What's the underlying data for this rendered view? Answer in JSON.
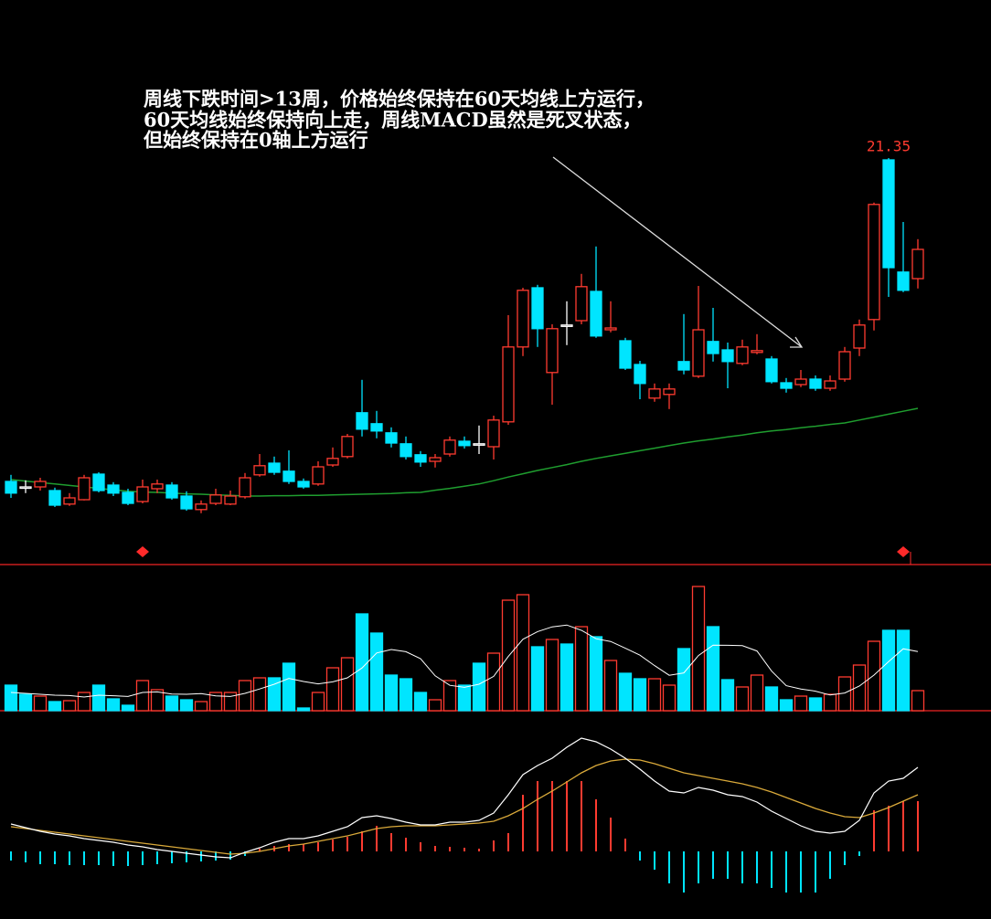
{
  "chart_data": [
    {
      "type": "candlestick",
      "annotation": [
        "周线下跌时间>13周，价格始终保持在60天均线上方运行，",
        "60天均线始终保持向上走，周线MACD虽然是死叉状态，",
        "但始终保持在0轴上方运行"
      ],
      "ylim": [
        11,
        23
      ],
      "up_color": "#ff3b30",
      "down_color": "#00e5ff",
      "doji_color": "#ffffff",
      "open": [
        12.5,
        12.35,
        12.35,
        12.25,
        11.88,
        12.0,
        12.7,
        12.4,
        12.2,
        11.95,
        12.3,
        12.4,
        12.1,
        11.73,
        11.9,
        11.88,
        12.08,
        12.68,
        13.0,
        12.78,
        12.5,
        12.43,
        12.95,
        13.18,
        14.38,
        14.08,
        13.83,
        13.53,
        13.23,
        13.05,
        13.25,
        13.6,
        13.53,
        13.45,
        14.13,
        16.18,
        17.8,
        15.48,
        16.78,
        16.9,
        17.7,
        16.65,
        16.35,
        15.7,
        14.78,
        14.88,
        15.78,
        15.38,
        16.33,
        16.1,
        15.73,
        16.03,
        15.85,
        15.2,
        15.15,
        15.3,
        15.05,
        15.3,
        16.15,
        16.93,
        21.3,
        18.23,
        18.05
      ],
      "close": [
        12.18,
        12.35,
        12.5,
        11.85,
        12.05,
        12.6,
        12.25,
        12.18,
        11.9,
        12.35,
        12.43,
        12.05,
        11.75,
        11.88,
        12.13,
        12.1,
        12.6,
        12.93,
        12.75,
        12.5,
        12.35,
        12.9,
        13.13,
        13.73,
        13.93,
        13.88,
        13.55,
        13.18,
        13.03,
        13.15,
        13.63,
        13.48,
        13.53,
        14.18,
        16.18,
        17.73,
        16.68,
        16.68,
        16.78,
        17.83,
        16.48,
        16.7,
        15.6,
        15.18,
        15.03,
        15.03,
        15.55,
        16.65,
        16.0,
        15.78,
        16.18,
        16.08,
        15.23,
        15.05,
        15.3,
        15.05,
        15.25,
        16.05,
        16.78,
        20.08,
        18.35,
        17.73,
        18.85
      ],
      "high": [
        12.68,
        12.53,
        12.6,
        12.33,
        12.18,
        12.68,
        12.75,
        12.48,
        12.3,
        12.55,
        12.55,
        12.48,
        12.23,
        11.98,
        12.3,
        12.25,
        12.73,
        13.25,
        13.18,
        13.35,
        12.58,
        13.05,
        13.43,
        13.8,
        15.28,
        14.43,
        13.98,
        13.73,
        13.33,
        13.25,
        13.73,
        13.73,
        14.03,
        14.3,
        17.05,
        17.8,
        17.88,
        16.8,
        17.43,
        18.18,
        18.93,
        17.43,
        16.43,
        15.8,
        15.18,
        15.18,
        17.08,
        17.85,
        17.25,
        16.3,
        16.38,
        16.53,
        15.93,
        15.33,
        15.55,
        15.4,
        15.4,
        16.18,
        16.93,
        20.13,
        21.35,
        19.6,
        19.13
      ],
      "low": [
        12.05,
        12.18,
        12.25,
        11.8,
        11.83,
        11.98,
        12.2,
        12.1,
        11.85,
        11.9,
        12.18,
        12.0,
        11.7,
        11.63,
        11.85,
        11.85,
        12.03,
        12.63,
        12.68,
        12.43,
        12.3,
        12.38,
        12.9,
        13.13,
        13.73,
        13.68,
        13.43,
        13.1,
        12.9,
        12.88,
        13.18,
        13.4,
        13.25,
        13.1,
        14.05,
        15.93,
        16.18,
        14.6,
        16.23,
        16.8,
        16.43,
        16.58,
        15.55,
        14.75,
        14.68,
        14.48,
        15.43,
        15.33,
        15.78,
        15.05,
        15.68,
        15.98,
        15.18,
        14.93,
        15.08,
        14.98,
        14.98,
        15.23,
        15.93,
        16.63,
        17.55,
        17.68,
        17.78
      ],
      "ma60": {
        "color": "#1f9e2f",
        "values": [
          12.55,
          12.51,
          12.47,
          12.43,
          12.39,
          12.35,
          12.31,
          12.27,
          12.23,
          12.21,
          12.2,
          12.18,
          12.16,
          12.15,
          12.13,
          12.12,
          12.1,
          12.1,
          12.11,
          12.11,
          12.12,
          12.12,
          12.13,
          12.14,
          12.15,
          12.16,
          12.17,
          12.19,
          12.2,
          12.26,
          12.31,
          12.37,
          12.43,
          12.52,
          12.62,
          12.71,
          12.8,
          12.88,
          12.96,
          13.05,
          13.13,
          13.2,
          13.27,
          13.34,
          13.41,
          13.48,
          13.55,
          13.61,
          13.66,
          13.72,
          13.77,
          13.83,
          13.88,
          13.92,
          13.97,
          14.01,
          14.06,
          14.1,
          14.18,
          14.26,
          14.34,
          14.42,
          14.5
        ]
      },
      "signals": [
        9,
        61
      ],
      "signal_color": "#ff2a2a"
    },
    {
      "type": "bar",
      "ylim": [
        0,
        14
      ],
      "values": [
        2.8,
        1.8,
        1.6,
        1.0,
        1.1,
        2.0,
        2.8,
        1.3,
        0.6,
        3.3,
        2.3,
        1.6,
        1.2,
        1.0,
        2.0,
        2.0,
        3.3,
        3.6,
        3.6,
        5.2,
        0.3,
        2.0,
        4.7,
        5.8,
        10.6,
        8.5,
        3.9,
        3.5,
        2.0,
        1.2,
        3.3,
        2.8,
        5.2,
        6.3,
        12.1,
        12.7,
        7.0,
        7.8,
        7.3,
        9.2,
        8.1,
        5.5,
        4.1,
        3.5,
        3.5,
        2.8,
        6.8,
        13.6,
        9.2,
        3.4,
        2.6,
        3.9,
        2.6,
        1.2,
        1.6,
        1.4,
        1.8,
        3.7,
        5.0,
        7.6,
        8.8,
        8.8,
        2.2
      ],
      "ma": {
        "color": "#ffffff",
        "values": [
          2.0,
          1.9,
          1.8,
          1.7,
          1.66,
          1.5,
          1.7,
          1.64,
          1.56,
          2.0,
          2.06,
          1.82,
          1.8,
          1.88,
          1.62,
          1.56,
          1.9,
          2.38,
          2.9,
          3.54,
          3.2,
          2.94,
          3.16,
          3.6,
          4.68,
          6.32,
          6.7,
          6.46,
          5.7,
          3.82,
          2.78,
          2.56,
          2.9,
          3.76,
          5.94,
          7.82,
          8.66,
          9.18,
          9.38,
          8.8,
          7.88,
          7.58,
          6.84,
          6.08,
          4.94,
          3.88,
          4.14,
          6.04,
          7.18,
          7.16,
          7.12,
          6.54,
          4.34,
          2.74,
          2.38,
          2.14,
          1.72,
          1.94,
          2.7,
          3.9,
          5.38,
          6.78,
          6.48
        ]
      }
    },
    {
      "type": "macd",
      "ylim": [
        -0.7,
        1.4
      ],
      "up_color": "#ff3b30",
      "down_color": "#00e5ff",
      "dif": {
        "color": "#ffffff",
        "values": [
          0.3,
          0.26,
          0.22,
          0.19,
          0.17,
          0.14,
          0.12,
          0.1,
          0.07,
          0.05,
          0.02,
          0.0,
          -0.02,
          -0.04,
          -0.06,
          -0.07,
          -0.01,
          0.04,
          0.1,
          0.14,
          0.14,
          0.17,
          0.22,
          0.27,
          0.37,
          0.39,
          0.36,
          0.32,
          0.29,
          0.29,
          0.32,
          0.32,
          0.34,
          0.42,
          0.62,
          0.84,
          0.94,
          1.02,
          1.14,
          1.24,
          1.2,
          1.12,
          1.02,
          0.9,
          0.77,
          0.66,
          0.64,
          0.7,
          0.67,
          0.62,
          0.6,
          0.54,
          0.44,
          0.36,
          0.28,
          0.22,
          0.2,
          0.22,
          0.34,
          0.64,
          0.77,
          0.8,
          0.92
        ]
      },
      "dea": {
        "color": "#d9a93a",
        "values": [
          0.27,
          0.25,
          0.23,
          0.21,
          0.19,
          0.17,
          0.15,
          0.13,
          0.11,
          0.09,
          0.07,
          0.05,
          0.03,
          0.01,
          -0.01,
          -0.03,
          -0.02,
          0.0,
          0.03,
          0.06,
          0.08,
          0.11,
          0.14,
          0.17,
          0.21,
          0.25,
          0.27,
          0.28,
          0.28,
          0.28,
          0.29,
          0.3,
          0.31,
          0.33,
          0.39,
          0.47,
          0.57,
          0.66,
          0.76,
          0.86,
          0.94,
          0.99,
          1.01,
          1.0,
          0.96,
          0.91,
          0.86,
          0.83,
          0.8,
          0.77,
          0.74,
          0.7,
          0.65,
          0.59,
          0.53,
          0.47,
          0.42,
          0.38,
          0.37,
          0.42,
          0.48,
          0.55,
          0.62
        ]
      },
      "hist": [
        -0.1,
        -0.12,
        -0.14,
        -0.14,
        -0.15,
        -0.15,
        -0.15,
        -0.16,
        -0.16,
        -0.15,
        -0.14,
        -0.13,
        -0.12,
        -0.11,
        -0.1,
        -0.09,
        -0.05,
        0.03,
        0.06,
        0.08,
        0.08,
        0.1,
        0.13,
        0.16,
        0.22,
        0.28,
        0.2,
        0.15,
        0.1,
        0.06,
        0.05,
        0.04,
        0.03,
        0.12,
        0.2,
        0.62,
        0.77,
        0.77,
        0.77,
        0.77,
        0.57,
        0.37,
        0.14,
        -0.1,
        -0.2,
        -0.35,
        -0.45,
        -0.35,
        -0.3,
        -0.3,
        -0.35,
        -0.35,
        -0.4,
        -0.45,
        -0.45,
        -0.45,
        -0.3,
        -0.15,
        -0.05,
        0.45,
        0.5,
        0.55,
        0.55
      ]
    }
  ]
}
